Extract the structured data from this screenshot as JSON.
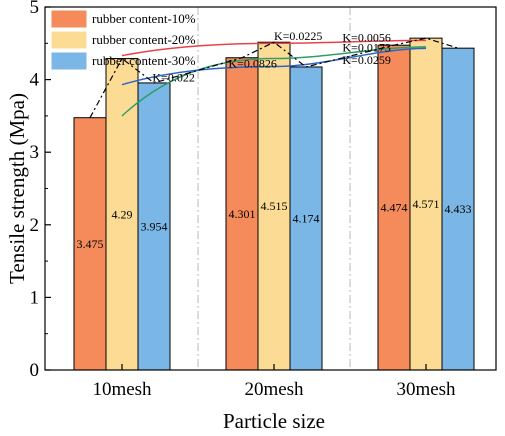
{
  "chart_data": {
    "type": "bar",
    "title": "",
    "xlabel": "Particle size",
    "ylabel": "Tensile strength (Mpa)",
    "ylim": [
      0,
      5
    ],
    "yticks": [
      "0",
      "1",
      "2",
      "3",
      "4",
      "5"
    ],
    "categories": [
      "10mesh",
      "20mesh",
      "30mesh"
    ],
    "legend_position": "top-left",
    "series": [
      {
        "name": "rubber content-10%",
        "color": "#F58B5B",
        "values": [
          3.475,
          4.301,
          4.474
        ],
        "labels": [
          "3.475",
          "4.301",
          "4.474"
        ]
      },
      {
        "name": "rubber content-20%",
        "color": "#FCDC94",
        "values": [
          4.29,
          4.515,
          4.571
        ],
        "labels": [
          "4.29",
          "4.515",
          "4.571"
        ]
      },
      {
        "name": "rubber content-30%",
        "color": "#7BB7E6",
        "values": [
          3.954,
          4.174,
          4.433
        ],
        "labels": [
          "3.954",
          "4.174",
          "4.433"
        ]
      }
    ],
    "trend_lines": [
      {
        "color": "#E8434B",
        "y": [
          4.33,
          4.5,
          4.54
        ]
      },
      {
        "color": "#2F9E68",
        "y": [
          3.5,
          4.29,
          4.45
        ]
      },
      {
        "color": "#2B63C8",
        "y": [
          3.93,
          4.18,
          4.43
        ]
      }
    ],
    "slope_annotations": [
      {
        "text": "K=0.0225",
        "x": 1.0,
        "y": 4.6
      },
      {
        "text": "K=0.0056",
        "x": 1.45,
        "y": 4.58
      },
      {
        "text": "K=0.0173",
        "x": 1.45,
        "y": 4.44
      },
      {
        "text": "K=0.0826",
        "x": 0.7,
        "y": 4.22
      },
      {
        "text": "K=0.0259",
        "x": 1.45,
        "y": 4.27
      },
      {
        "text": "K=0.022",
        "x": 0.2,
        "y": 4.03
      }
    ]
  }
}
